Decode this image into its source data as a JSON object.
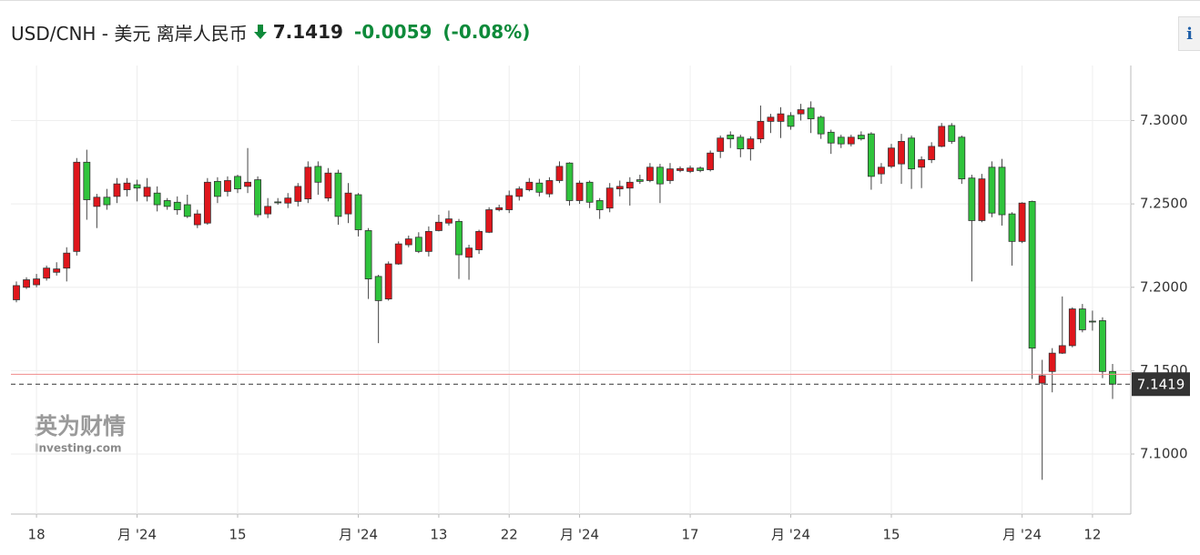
{
  "header": {
    "symbol": "USD/CNH - 美元 离岸人民币",
    "price": "7.1419",
    "change": "-0.0059",
    "change_percent": "(-0.08%)",
    "info_button": "i"
  },
  "watermark": {
    "cn": "英为财情",
    "brand": "Investing.com"
  },
  "chart_data": {
    "type": "candlestick",
    "categories": [
      null,
      null,
      "18",
      null,
      null,
      null,
      null,
      null,
      null,
      null,
      null,
      null,
      "月 '24",
      null,
      null,
      null,
      null,
      null,
      null,
      null,
      null,
      null,
      "15",
      null,
      null,
      null,
      null,
      null,
      null,
      null,
      null,
      null,
      null,
      null,
      "月 '24",
      null,
      null,
      null,
      null,
      null,
      null,
      null,
      "13",
      null,
      null,
      null,
      null,
      null,
      null,
      "22",
      null,
      null,
      null,
      null,
      null,
      null,
      "月 '24",
      null,
      null,
      null,
      null,
      null,
      null,
      null,
      null,
      null,
      null,
      "17",
      null,
      null,
      null,
      null,
      null,
      null,
      null,
      null,
      null,
      "月 '24",
      null,
      null,
      null,
      null,
      null,
      null,
      null,
      null,
      null,
      "15",
      null,
      null,
      null,
      null,
      null,
      null,
      null,
      null,
      null,
      null,
      null,
      null,
      "月 '24",
      null,
      null,
      null,
      null,
      null,
      null,
      "12",
      null,
      null
    ],
    "open": [
      7.1925,
      7.2,
      7.2015,
      7.2055,
      7.209,
      7.2115,
      7.2215,
      7.275,
      7.2485,
      7.254,
      7.2545,
      7.2585,
      7.2615,
      7.2545,
      7.2565,
      7.252,
      7.251,
      7.2495,
      7.2375,
      7.2385,
      7.2635,
      7.2575,
      7.2665,
      7.2605,
      7.2645,
      7.244,
      7.2512,
      7.2505,
      7.2515,
      7.253,
      7.2725,
      7.2535,
      7.2685,
      7.244,
      7.2555,
      7.234,
      7.2065,
      7.193,
      7.214,
      7.2255,
      7.23,
      7.2215,
      7.234,
      7.2385,
      7.2395,
      7.218,
      7.2225,
      7.233,
      7.2465,
      7.2465,
      7.2545,
      7.2585,
      7.2625,
      7.256,
      7.264,
      7.2745,
      7.252,
      7.263,
      7.252,
      7.2475,
      7.259,
      7.2595,
      7.2645,
      7.264,
      7.272,
      7.264,
      7.27,
      7.2695,
      7.2715,
      7.2705,
      7.2815,
      7.2913,
      7.29,
      7.283,
      7.289,
      7.2995,
      7.2995,
      7.303,
      7.304,
      7.3075,
      7.302,
      7.293,
      7.29,
      7.286,
      7.2912,
      7.292,
      7.268,
      7.2725,
      7.274,
      7.2895,
      7.272,
      7.2765,
      7.2845,
      7.297,
      7.29,
      7.2655,
      7.24,
      7.272,
      7.272,
      7.244,
      7.2275,
      7.2515,
      7.1425,
      7.1495,
      7.1605,
      7.165,
      7.187,
      7.1797,
      7.18,
      7.1495
    ],
    "high": [
      7.2035,
      7.206,
      7.208,
      7.213,
      7.215,
      7.224,
      7.2775,
      7.2825,
      7.256,
      7.259,
      7.2655,
      7.2655,
      7.2645,
      7.2655,
      7.2605,
      7.2535,
      7.2545,
      7.2555,
      7.2465,
      7.2655,
      7.266,
      7.2665,
      7.2675,
      7.2835,
      7.2665,
      7.2535,
      7.2535,
      7.2565,
      7.2625,
      7.2755,
      7.2755,
      7.2715,
      7.2705,
      7.2625,
      7.2565,
      7.2355,
      7.2075,
      7.2155,
      7.2275,
      7.231,
      7.233,
      7.2365,
      7.2435,
      7.246,
      7.241,
      7.2255,
      7.2345,
      7.248,
      7.2495,
      7.258,
      7.2605,
      7.2655,
      7.265,
      7.266,
      7.2755,
      7.275,
      7.264,
      7.264,
      7.2535,
      7.2625,
      7.264,
      7.266,
      7.2675,
      7.2745,
      7.274,
      7.2745,
      7.2725,
      7.273,
      7.2725,
      7.282,
      7.291,
      7.2935,
      7.2915,
      7.2905,
      7.309,
      7.304,
      7.308,
      7.305,
      7.31,
      7.3115,
      7.303,
      7.2945,
      7.2915,
      7.2915,
      7.2935,
      7.293,
      7.2745,
      7.286,
      7.292,
      7.291,
      7.2785,
      7.287,
      7.2985,
      7.2985,
      7.291,
      7.2675,
      7.268,
      7.2755,
      7.277,
      7.245,
      7.251,
      7.252,
      7.1565,
      7.1635,
      7.1945,
      7.188,
      7.19,
      7.186,
      7.182,
      7.154
    ],
    "low": [
      7.191,
      7.199,
      7.2,
      7.204,
      7.207,
      7.2035,
      7.219,
      7.2405,
      7.2355,
      7.2465,
      7.2505,
      7.2545,
      7.2515,
      7.2515,
      7.2455,
      7.2465,
      7.2435,
      7.2415,
      7.2355,
      7.2375,
      7.2505,
      7.2545,
      7.2565,
      7.2565,
      7.242,
      7.2415,
      7.2495,
      7.2475,
      7.2485,
      7.2505,
      7.2555,
      7.2515,
      7.2375,
      7.2385,
      7.2305,
      7.193,
      7.1665,
      7.192,
      7.2135,
      7.224,
      7.2205,
      7.2185,
      7.2335,
      7.237,
      7.205,
      7.2045,
      7.22,
      7.2325,
      7.2455,
      7.2445,
      7.252,
      7.2575,
      7.2545,
      7.254,
      7.2625,
      7.249,
      7.25,
      7.2475,
      7.241,
      7.245,
      7.2545,
      7.249,
      7.262,
      7.263,
      7.2505,
      7.262,
      7.269,
      7.2685,
      7.269,
      7.2695,
      7.2775,
      7.2835,
      7.278,
      7.276,
      7.2865,
      7.2925,
      7.2895,
      7.2945,
      7.3,
      7.2925,
      7.289,
      7.28,
      7.2835,
      7.2845,
      7.288,
      7.2585,
      7.262,
      7.2715,
      7.262,
      7.259,
      7.2595,
      7.2745,
      7.284,
      7.286,
      7.262,
      7.2035,
      7.239,
      7.242,
      7.237,
      7.213,
      7.2265,
      7.145,
      7.0845,
      7.137,
      7.16,
      7.164,
      7.173,
      7.174,
      7.1455,
      7.133
    ],
    "close": [
      7.201,
      7.2045,
      7.205,
      7.2115,
      7.211,
      7.2205,
      7.275,
      7.2525,
      7.254,
      7.2495,
      7.262,
      7.2625,
      7.2595,
      7.26,
      7.2495,
      7.2485,
      7.2465,
      7.2425,
      7.244,
      7.263,
      7.2545,
      7.264,
      7.259,
      7.263,
      7.2435,
      7.2485,
      7.2508,
      7.2535,
      7.2605,
      7.272,
      7.263,
      7.2685,
      7.2425,
      7.2565,
      7.2345,
      7.205,
      7.192,
      7.214,
      7.226,
      7.229,
      7.2215,
      7.2335,
      7.239,
      7.241,
      7.2195,
      7.2235,
      7.2335,
      7.2465,
      7.2477,
      7.255,
      7.259,
      7.263,
      7.257,
      7.264,
      7.2725,
      7.252,
      7.2625,
      7.251,
      7.2465,
      7.2595,
      7.2605,
      7.263,
      7.2635,
      7.272,
      7.262,
      7.271,
      7.2712,
      7.2715,
      7.27,
      7.2805,
      7.2895,
      7.289,
      7.283,
      7.289,
      7.2995,
      7.302,
      7.304,
      7.2965,
      7.3065,
      7.301,
      7.292,
      7.2865,
      7.286,
      7.29,
      7.289,
      7.2665,
      7.272,
      7.2835,
      7.2875,
      7.271,
      7.2765,
      7.2845,
      7.2965,
      7.2875,
      7.265,
      7.24,
      7.265,
      7.2445,
      7.2435,
      7.2275,
      7.2505,
      7.1635,
      7.147,
      7.1605,
      7.165,
      7.187,
      7.1745,
      7.1795,
      7.1495,
      7.1419
    ],
    "up_color": "#e0161c",
    "down_color": "#2fc43c",
    "ylim": [
      7.064,
      7.333
    ],
    "yticks": [
      {
        "value": 7.1,
        "label": "7.1000"
      },
      {
        "value": 7.15,
        "label": "7.1500"
      },
      {
        "value": 7.2,
        "label": "7.2000"
      },
      {
        "value": 7.25,
        "label": "7.2500"
      },
      {
        "value": 7.3,
        "label": "7.3000"
      }
    ],
    "grid": true,
    "reference_line": {
      "value": 7.1478,
      "color": "#f08a8a"
    },
    "last_price": {
      "value": 7.1419,
      "label": "7.1419"
    }
  }
}
